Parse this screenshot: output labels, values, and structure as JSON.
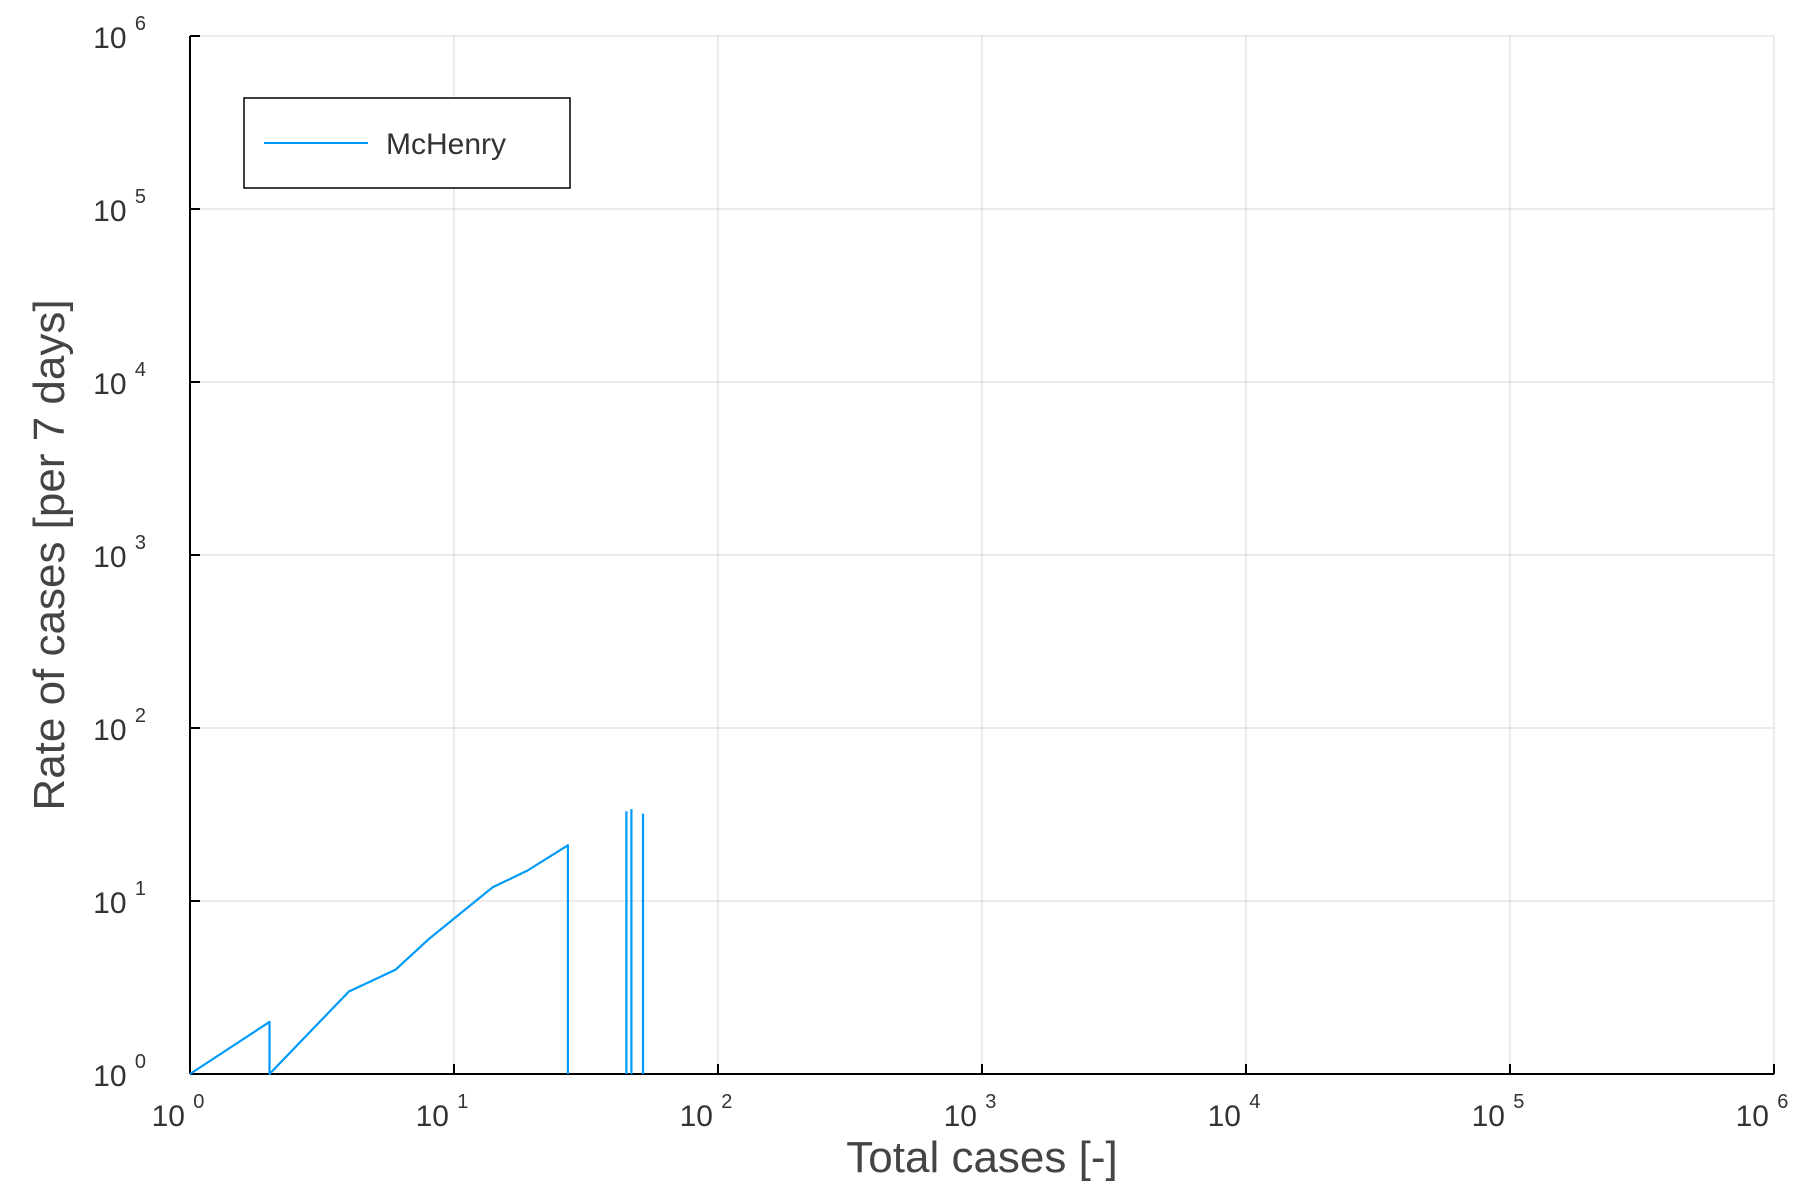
{
  "chart_data": {
    "type": "line",
    "title": "",
    "xlabel": "Total cases [-]",
    "ylabel": "Rate of cases [per 7 days]",
    "x_scale": "log",
    "y_scale": "log",
    "xlim": [
      1,
      1000000
    ],
    "ylim": [
      1,
      1000000
    ],
    "grid": true,
    "legend_position": "top-left",
    "x_ticks": [
      {
        "base": "10",
        "exp": "0"
      },
      {
        "base": "10",
        "exp": "1"
      },
      {
        "base": "10",
        "exp": "2"
      },
      {
        "base": "10",
        "exp": "3"
      },
      {
        "base": "10",
        "exp": "4"
      },
      {
        "base": "10",
        "exp": "5"
      },
      {
        "base": "10",
        "exp": "6"
      }
    ],
    "y_ticks": [
      {
        "base": "10",
        "exp": "0"
      },
      {
        "base": "10",
        "exp": "1"
      },
      {
        "base": "10",
        "exp": "2"
      },
      {
        "base": "10",
        "exp": "3"
      },
      {
        "base": "10",
        "exp": "4"
      },
      {
        "base": "10",
        "exp": "5"
      },
      {
        "base": "10",
        "exp": "6"
      }
    ],
    "series": [
      {
        "name": "McHenry",
        "color": "#009AFA",
        "segments": [
          [
            [
              1,
              1
            ],
            [
              2,
              2
            ],
            [
              2,
              1
            ],
            [
              4,
              3
            ],
            [
              6,
              4
            ],
            [
              8,
              6
            ],
            [
              14,
              12
            ],
            [
              19,
              15
            ],
            [
              27,
              21
            ],
            [
              27,
              1
            ]
          ],
          [
            [
              45,
              1
            ],
            [
              45,
              33
            ]
          ],
          [
            [
              47,
              1
            ],
            [
              47,
              34
            ]
          ],
          [
            [
              52,
              1
            ],
            [
              52,
              32
            ]
          ]
        ]
      }
    ]
  }
}
